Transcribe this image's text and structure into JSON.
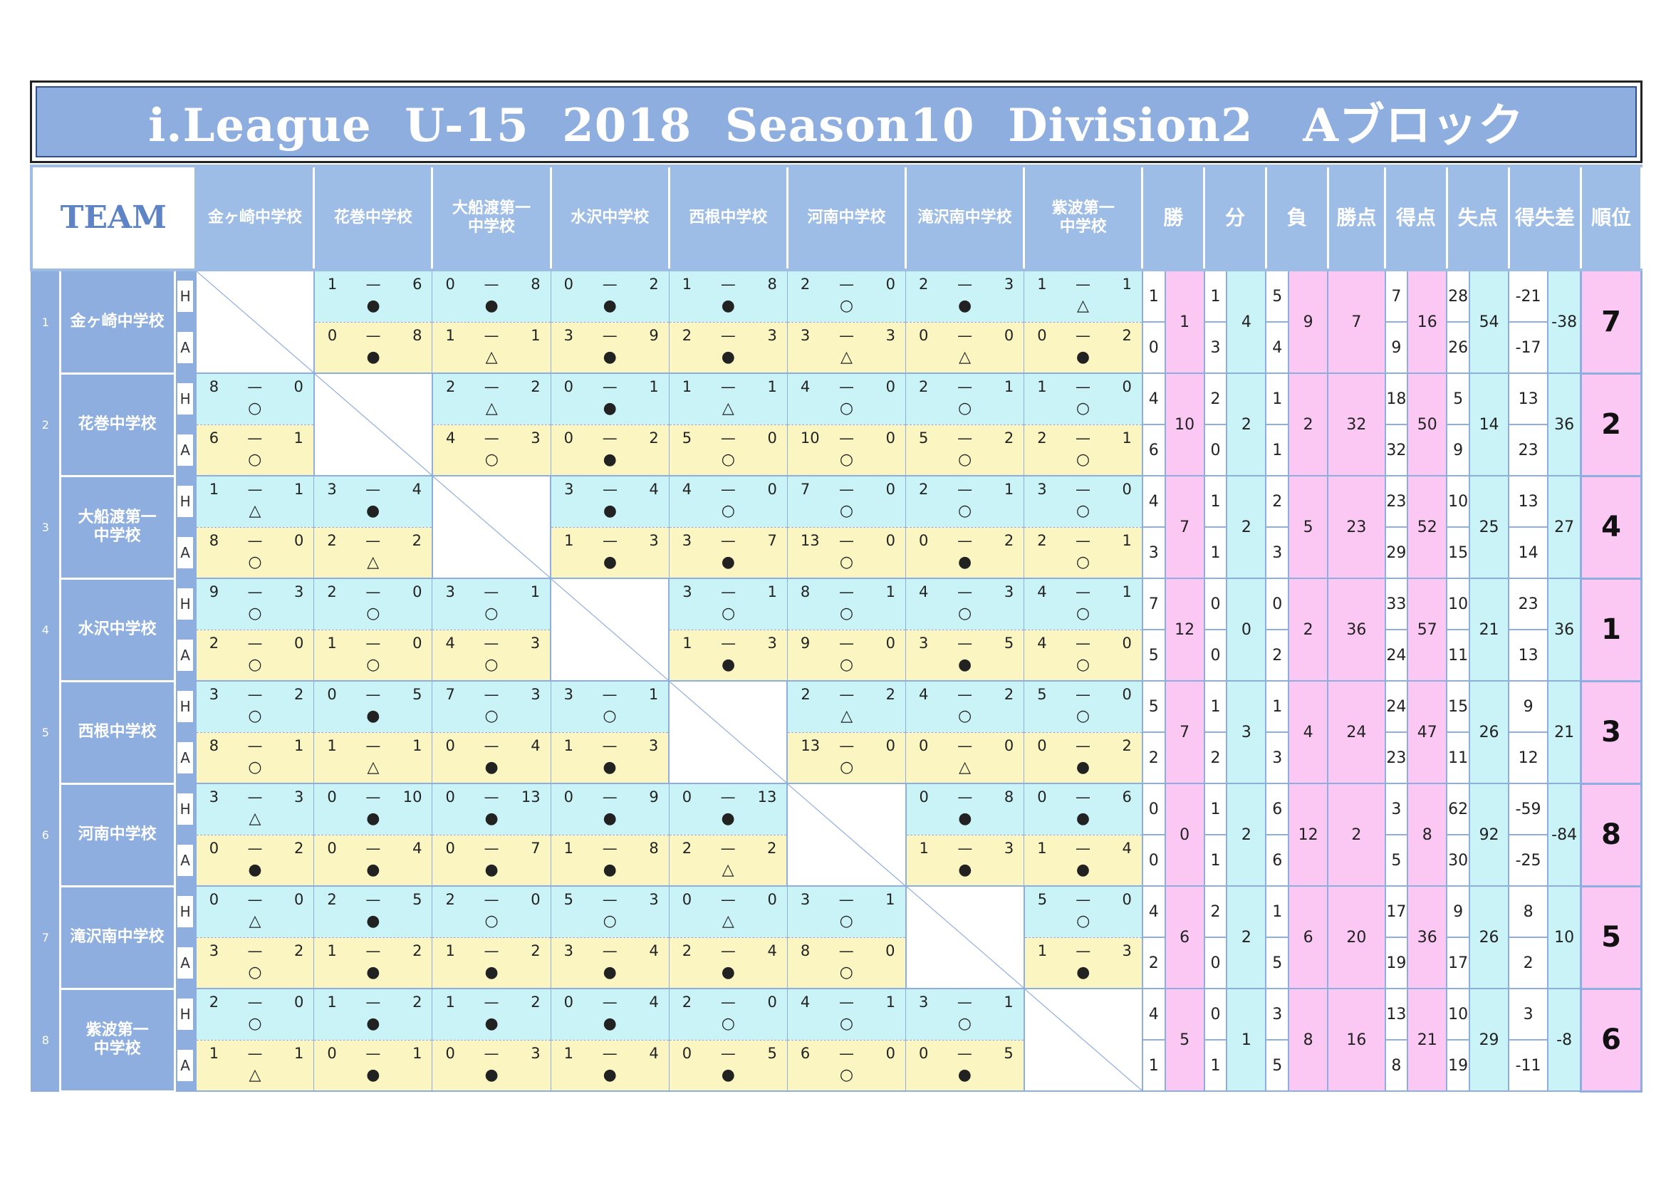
{
  "title": "i.League  U-15  2018  Season10  Division2   Aブロック",
  "header": {
    "team": "TEAM",
    "opponents": [
      "金ヶ崎中学校",
      "花巻中学校",
      "大船渡第一\n中学校",
      "水沢中学校",
      "西根中学校",
      "河南中学校",
      "滝沢南中学校",
      "紫波第一\n中学校"
    ],
    "stats": [
      "勝",
      "分",
      "負",
      "勝点",
      "得点",
      "失点",
      "得失差",
      "順位"
    ]
  },
  "ha_labels": [
    "H",
    "A"
  ],
  "dash": "—",
  "teams": [
    {
      "no": "1",
      "name": "金ヶ崎中学校",
      "home": [
        null,
        [
          "1",
          "6",
          "●"
        ],
        [
          "0",
          "8",
          "●"
        ],
        [
          "0",
          "2",
          "●"
        ],
        [
          "1",
          "8",
          "●"
        ],
        [
          "2",
          "0",
          "○"
        ],
        [
          "2",
          "3",
          "●"
        ],
        [
          "1",
          "1",
          "△"
        ]
      ],
      "away": [
        null,
        [
          "0",
          "8",
          "●"
        ],
        [
          "1",
          "1",
          "△"
        ],
        [
          "3",
          "9",
          "●"
        ],
        [
          "2",
          "3",
          "●"
        ],
        [
          "3",
          "3",
          "△"
        ],
        [
          "0",
          "0",
          "△"
        ],
        [
          "0",
          "2",
          "●"
        ]
      ],
      "win": [
        "1",
        "0"
      ],
      "win_total": "1",
      "draw": [
        "1",
        "3"
      ],
      "draw_total": "4",
      "loss": [
        "5",
        "4"
      ],
      "loss_total": "9",
      "points": "7",
      "gf": [
        "7",
        "9"
      ],
      "gf_total": "16",
      "ga": [
        "28",
        "26"
      ],
      "ga_total": "54",
      "gd": [
        "-21",
        "-17"
      ],
      "gd_total": "-38",
      "rank": "7"
    },
    {
      "no": "2",
      "name": "花巻中学校",
      "home": [
        [
          "8",
          "0",
          "○"
        ],
        null,
        [
          "2",
          "2",
          "△"
        ],
        [
          "0",
          "1",
          "●"
        ],
        [
          "1",
          "1",
          "△"
        ],
        [
          "4",
          "0",
          "○"
        ],
        [
          "2",
          "1",
          "○"
        ],
        [
          "1",
          "0",
          "○"
        ]
      ],
      "away": [
        [
          "6",
          "1",
          "○"
        ],
        null,
        [
          "4",
          "3",
          "○"
        ],
        [
          "0",
          "2",
          "●"
        ],
        [
          "5",
          "0",
          "○"
        ],
        [
          "10",
          "0",
          "○"
        ],
        [
          "5",
          "2",
          "○"
        ],
        [
          "2",
          "1",
          "○"
        ]
      ],
      "win": [
        "4",
        "6"
      ],
      "win_total": "10",
      "draw": [
        "2",
        "0"
      ],
      "draw_total": "2",
      "loss": [
        "1",
        "1"
      ],
      "loss_total": "2",
      "points": "32",
      "gf": [
        "18",
        "32"
      ],
      "gf_total": "50",
      "ga": [
        "5",
        "9"
      ],
      "ga_total": "14",
      "gd": [
        "13",
        "23"
      ],
      "gd_total": "36",
      "rank": "2"
    },
    {
      "no": "3",
      "name": "大船渡第一\n中学校",
      "home": [
        [
          "1",
          "1",
          "△"
        ],
        [
          "3",
          "4",
          "●"
        ],
        null,
        [
          "3",
          "4",
          "●"
        ],
        [
          "4",
          "0",
          "○"
        ],
        [
          "7",
          "0",
          "○"
        ],
        [
          "2",
          "1",
          "○"
        ],
        [
          "3",
          "0",
          "○"
        ]
      ],
      "away": [
        [
          "8",
          "0",
          "○"
        ],
        [
          "2",
          "2",
          "△"
        ],
        null,
        [
          "1",
          "3",
          "●"
        ],
        [
          "3",
          "7",
          "●"
        ],
        [
          "13",
          "0",
          "○"
        ],
        [
          "0",
          "2",
          "●"
        ],
        [
          "2",
          "1",
          "○"
        ]
      ],
      "win": [
        "4",
        "3"
      ],
      "win_total": "7",
      "draw": [
        "1",
        "1"
      ],
      "draw_total": "2",
      "loss": [
        "2",
        "3"
      ],
      "loss_total": "5",
      "points": "23",
      "gf": [
        "23",
        "29"
      ],
      "gf_total": "52",
      "ga": [
        "10",
        "15"
      ],
      "ga_total": "25",
      "gd": [
        "13",
        "14"
      ],
      "gd_total": "27",
      "rank": "4"
    },
    {
      "no": "4",
      "name": "水沢中学校",
      "home": [
        [
          "9",
          "3",
          "○"
        ],
        [
          "2",
          "0",
          "○"
        ],
        [
          "3",
          "1",
          "○"
        ],
        null,
        [
          "3",
          "1",
          "○"
        ],
        [
          "8",
          "1",
          "○"
        ],
        [
          "4",
          "3",
          "○"
        ],
        [
          "4",
          "1",
          "○"
        ]
      ],
      "away": [
        [
          "2",
          "0",
          "○"
        ],
        [
          "1",
          "0",
          "○"
        ],
        [
          "4",
          "3",
          "○"
        ],
        null,
        [
          "1",
          "3",
          "●"
        ],
        [
          "9",
          "0",
          "○"
        ],
        [
          "3",
          "5",
          "●"
        ],
        [
          "4",
          "0",
          "○"
        ]
      ],
      "win": [
        "7",
        "5"
      ],
      "win_total": "12",
      "draw": [
        "0",
        "0"
      ],
      "draw_total": "0",
      "loss": [
        "0",
        "2"
      ],
      "loss_total": "2",
      "points": "36",
      "gf": [
        "33",
        "24"
      ],
      "gf_total": "57",
      "ga": [
        "10",
        "11"
      ],
      "ga_total": "21",
      "gd": [
        "23",
        "13"
      ],
      "gd_total": "36",
      "rank": "1"
    },
    {
      "no": "5",
      "name": "西根中学校",
      "home": [
        [
          "3",
          "2",
          "○"
        ],
        [
          "0",
          "5",
          "●"
        ],
        [
          "7",
          "3",
          "○"
        ],
        [
          "3",
          "1",
          "○"
        ],
        null,
        [
          "2",
          "2",
          "△"
        ],
        [
          "4",
          "2",
          "○"
        ],
        [
          "5",
          "0",
          "○"
        ]
      ],
      "away": [
        [
          "8",
          "1",
          "○"
        ],
        [
          "1",
          "1",
          "△"
        ],
        [
          "0",
          "4",
          "●"
        ],
        [
          "1",
          "3",
          "●"
        ],
        null,
        [
          "13",
          "0",
          "○"
        ],
        [
          "0",
          "0",
          "△"
        ],
        [
          "0",
          "2",
          "●"
        ]
      ],
      "win": [
        "5",
        "2"
      ],
      "win_total": "7",
      "draw": [
        "1",
        "2"
      ],
      "draw_total": "3",
      "loss": [
        "1",
        "3"
      ],
      "loss_total": "4",
      "points": "24",
      "gf": [
        "24",
        "23"
      ],
      "gf_total": "47",
      "ga": [
        "15",
        "11"
      ],
      "ga_total": "26",
      "gd": [
        "9",
        "12"
      ],
      "gd_total": "21",
      "rank": "3"
    },
    {
      "no": "6",
      "name": "河南中学校",
      "home": [
        [
          "3",
          "3",
          "△"
        ],
        [
          "0",
          "10",
          "●"
        ],
        [
          "0",
          "13",
          "●"
        ],
        [
          "0",
          "9",
          "●"
        ],
        [
          "0",
          "13",
          "●"
        ],
        null,
        [
          "0",
          "8",
          "●"
        ],
        [
          "0",
          "6",
          "●"
        ]
      ],
      "away": [
        [
          "0",
          "2",
          "●"
        ],
        [
          "0",
          "4",
          "●"
        ],
        [
          "0",
          "7",
          "●"
        ],
        [
          "1",
          "8",
          "●"
        ],
        [
          "2",
          "2",
          "△"
        ],
        null,
        [
          "1",
          "3",
          "●"
        ],
        [
          "1",
          "4",
          "●"
        ]
      ],
      "win": [
        "0",
        "0"
      ],
      "win_total": "0",
      "draw": [
        "1",
        "1"
      ],
      "draw_total": "2",
      "loss": [
        "6",
        "6"
      ],
      "loss_total": "12",
      "points": "2",
      "gf": [
        "3",
        "5"
      ],
      "gf_total": "8",
      "ga": [
        "62",
        "30"
      ],
      "ga_total": "92",
      "gd": [
        "-59",
        "-25"
      ],
      "gd_total": "-84",
      "rank": "8"
    },
    {
      "no": "7",
      "name": "滝沢南中学校",
      "home": [
        [
          "0",
          "0",
          "△"
        ],
        [
          "2",
          "5",
          "●"
        ],
        [
          "2",
          "0",
          "○"
        ],
        [
          "5",
          "3",
          "○"
        ],
        [
          "0",
          "0",
          "△"
        ],
        [
          "3",
          "1",
          "○"
        ],
        null,
        [
          "5",
          "0",
          "○"
        ]
      ],
      "away": [
        [
          "3",
          "2",
          "○"
        ],
        [
          "1",
          "2",
          "●"
        ],
        [
          "1",
          "2",
          "●"
        ],
        [
          "3",
          "4",
          "●"
        ],
        [
          "2",
          "4",
          "●"
        ],
        [
          "8",
          "0",
          "○"
        ],
        null,
        [
          "1",
          "3",
          "●"
        ]
      ],
      "win": [
        "4",
        "2"
      ],
      "win_total": "6",
      "draw": [
        "2",
        "0"
      ],
      "draw_total": "2",
      "loss": [
        "1",
        "5"
      ],
      "loss_total": "6",
      "points": "20",
      "gf": [
        "17",
        "19"
      ],
      "gf_total": "36",
      "ga": [
        "9",
        "17"
      ],
      "ga_total": "26",
      "gd": [
        "8",
        "2"
      ],
      "gd_total": "10",
      "rank": "5"
    },
    {
      "no": "8",
      "name": "紫波第一\n中学校",
      "home": [
        [
          "2",
          "0",
          "○"
        ],
        [
          "1",
          "2",
          "●"
        ],
        [
          "1",
          "2",
          "●"
        ],
        [
          "0",
          "4",
          "●"
        ],
        [
          "2",
          "0",
          "○"
        ],
        [
          "4",
          "1",
          "○"
        ],
        [
          "3",
          "1",
          "○"
        ],
        null
      ],
      "away": [
        [
          "1",
          "1",
          "△"
        ],
        [
          "0",
          "1",
          "●"
        ],
        [
          "0",
          "3",
          "●"
        ],
        [
          "1",
          "4",
          "●"
        ],
        [
          "0",
          "5",
          "●"
        ],
        [
          "6",
          "0",
          "○"
        ],
        [
          "0",
          "5",
          "●"
        ],
        null
      ],
      "win": [
        "4",
        "1"
      ],
      "win_total": "5",
      "draw": [
        "0",
        "1"
      ],
      "draw_total": "1",
      "loss": [
        "3",
        "5"
      ],
      "loss_total": "8",
      "points": "16",
      "gf": [
        "13",
        "8"
      ],
      "gf_total": "21",
      "ga": [
        "10",
        "19"
      ],
      "ga_total": "29",
      "gd": [
        "3",
        "-11"
      ],
      "gd_total": "-8",
      "rank": "6"
    }
  ]
}
